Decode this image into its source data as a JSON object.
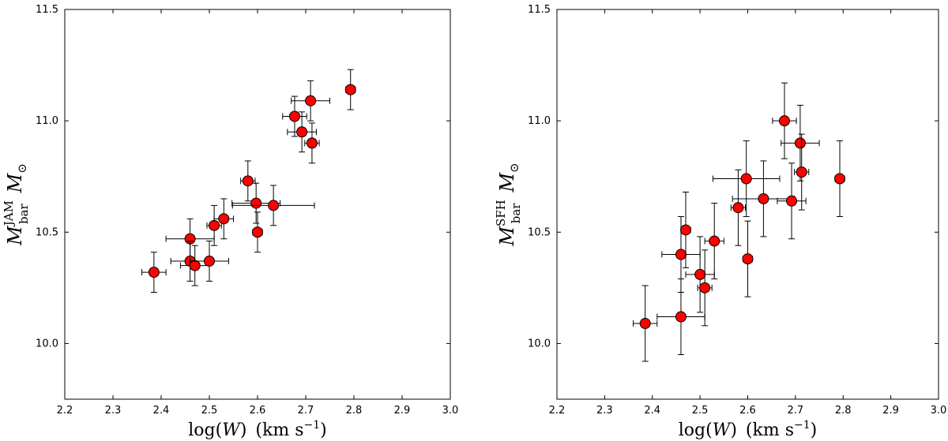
{
  "figure": {
    "x_axis_label": "log(W)  (km s⁻¹)",
    "x_axis_label_parts": {
      "func": "log",
      "var": "W",
      "unit": "(km s",
      "exp": "−1",
      "close": ")"
    }
  },
  "chart_data": [
    {
      "type": "scatter",
      "title": "",
      "xlabel": "log(W) (km s^-1)",
      "ylabel": "M_bar^JAM M_sun",
      "ylabel_parts": {
        "main": "M",
        "sup": "JAM",
        "sub": "bar",
        "unit": "M",
        "unit_sub": "⊙"
      },
      "xlim": [
        2.2,
        3.0
      ],
      "ylim": [
        9.75,
        11.5
      ],
      "x_ticks": [
        "2.2",
        "2.3",
        "2.4",
        "2.5",
        "2.6",
        "2.7",
        "2.8",
        "2.9",
        "3.0"
      ],
      "y_ticks": [
        "10.0",
        "10.5",
        "11.0",
        "11.5"
      ],
      "grid": false,
      "marker_color": "#ff0000",
      "points": [
        {
          "x": 2.385,
          "y": 10.32,
          "xerr": 0.025,
          "yerr": 0.09
        },
        {
          "x": 2.46,
          "y": 10.47,
          "xerr": 0.05,
          "yerr": 0.09
        },
        {
          "x": 2.46,
          "y": 10.37,
          "xerr": 0.04,
          "yerr": 0.09
        },
        {
          "x": 2.47,
          "y": 10.35,
          "xerr": 0.03,
          "yerr": 0.09
        },
        {
          "x": 2.5,
          "y": 10.37,
          "xerr": 0.04,
          "yerr": 0.09
        },
        {
          "x": 2.51,
          "y": 10.53,
          "xerr": 0.015,
          "yerr": 0.09
        },
        {
          "x": 2.53,
          "y": 10.56,
          "xerr": 0.02,
          "yerr": 0.09
        },
        {
          "x": 2.58,
          "y": 10.73,
          "xerr": 0.015,
          "yerr": 0.09
        },
        {
          "x": 2.597,
          "y": 10.63,
          "xerr": 0.05,
          "yerr": 0.09
        },
        {
          "x": 2.6,
          "y": 10.5,
          "xerr": 0.01,
          "yerr": 0.09
        },
        {
          "x": 2.633,
          "y": 10.62,
          "xerr": 0.085,
          "yerr": 0.09
        },
        {
          "x": 2.677,
          "y": 11.02,
          "xerr": 0.025,
          "yerr": 0.09
        },
        {
          "x": 2.692,
          "y": 10.95,
          "xerr": 0.03,
          "yerr": 0.09
        },
        {
          "x": 2.71,
          "y": 11.09,
          "xerr": 0.04,
          "yerr": 0.09
        },
        {
          "x": 2.713,
          "y": 10.9,
          "xerr": 0.015,
          "yerr": 0.09
        },
        {
          "x": 2.793,
          "y": 11.14,
          "xerr": 0.01,
          "yerr": 0.09
        }
      ]
    },
    {
      "type": "scatter",
      "title": "",
      "xlabel": "log(W) (km s^-1)",
      "ylabel": "M_bar^SFH M_sun",
      "ylabel_parts": {
        "main": "M",
        "sup": "SFH",
        "sub": "bar",
        "unit": "M",
        "unit_sub": "⊙"
      },
      "xlim": [
        2.2,
        3.0
      ],
      "ylim": [
        9.75,
        11.5
      ],
      "x_ticks": [
        "2.2",
        "2.3",
        "2.4",
        "2.5",
        "2.6",
        "2.7",
        "2.8",
        "2.9",
        "3.0"
      ],
      "y_ticks": [
        "10.0",
        "10.5",
        "11.0",
        "11.5"
      ],
      "grid": false,
      "marker_color": "#ff0000",
      "points": [
        {
          "x": 2.385,
          "y": 10.09,
          "xerr": 0.025,
          "yerr": 0.17
        },
        {
          "x": 2.46,
          "y": 10.12,
          "xerr": 0.05,
          "yerr": 0.17
        },
        {
          "x": 2.46,
          "y": 10.4,
          "xerr": 0.04,
          "yerr": 0.17
        },
        {
          "x": 2.47,
          "y": 10.51,
          "xerr": 0.01,
          "yerr": 0.17
        },
        {
          "x": 2.5,
          "y": 10.31,
          "xerr": 0.03,
          "yerr": 0.17
        },
        {
          "x": 2.51,
          "y": 10.25,
          "xerr": 0.015,
          "yerr": 0.17
        },
        {
          "x": 2.53,
          "y": 10.46,
          "xerr": 0.02,
          "yerr": 0.17
        },
        {
          "x": 2.58,
          "y": 10.61,
          "xerr": 0.015,
          "yerr": 0.17
        },
        {
          "x": 2.597,
          "y": 10.74,
          "xerr": 0.07,
          "yerr": 0.17
        },
        {
          "x": 2.6,
          "y": 10.38,
          "xerr": 0.01,
          "yerr": 0.17
        },
        {
          "x": 2.633,
          "y": 10.65,
          "xerr": 0.065,
          "yerr": 0.17
        },
        {
          "x": 2.677,
          "y": 11.0,
          "xerr": 0.025,
          "yerr": 0.17
        },
        {
          "x": 2.692,
          "y": 10.64,
          "xerr": 0.03,
          "yerr": 0.17
        },
        {
          "x": 2.71,
          "y": 10.9,
          "xerr": 0.04,
          "yerr": 0.17
        },
        {
          "x": 2.713,
          "y": 10.77,
          "xerr": 0.015,
          "yerr": 0.17
        },
        {
          "x": 2.793,
          "y": 10.74,
          "xerr": 0.01,
          "yerr": 0.17
        }
      ]
    }
  ]
}
